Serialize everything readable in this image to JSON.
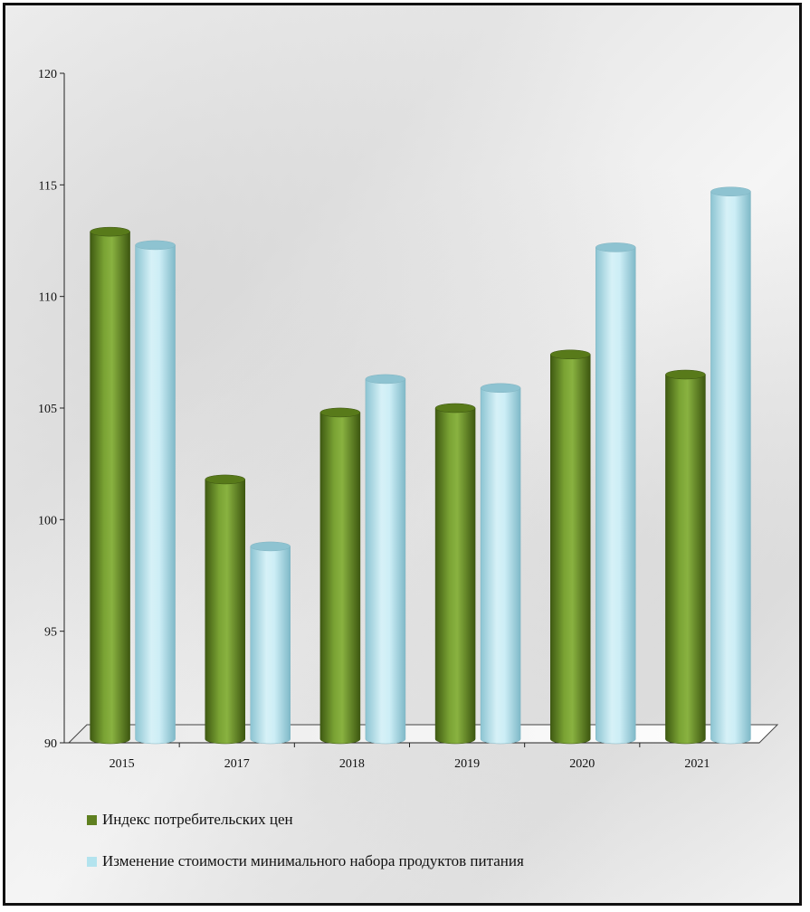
{
  "chart_data": {
    "type": "bar",
    "categories": [
      "2015",
      "2017",
      "2018",
      "2019",
      "2020",
      "2021"
    ],
    "series": [
      {
        "name": "Индекс потребительских цен",
        "color": "#6b8e23",
        "values": [
          112.9,
          101.8,
          104.8,
          105.0,
          107.4,
          106.5
        ]
      },
      {
        "name": "Изменение стоимости минимального набора продуктов питания",
        "color": "#a8dde8",
        "values": [
          112.3,
          98.8,
          106.3,
          105.9,
          112.2,
          114.7
        ]
      }
    ],
    "ylim": [
      90,
      120
    ],
    "yticks": [
      "90",
      "95",
      "100",
      "105",
      "110",
      "115",
      "120"
    ],
    "xlabel": "",
    "ylabel": "",
    "legend_position": "bottom-left",
    "grid": false,
    "style": "3d-cylinder"
  }
}
